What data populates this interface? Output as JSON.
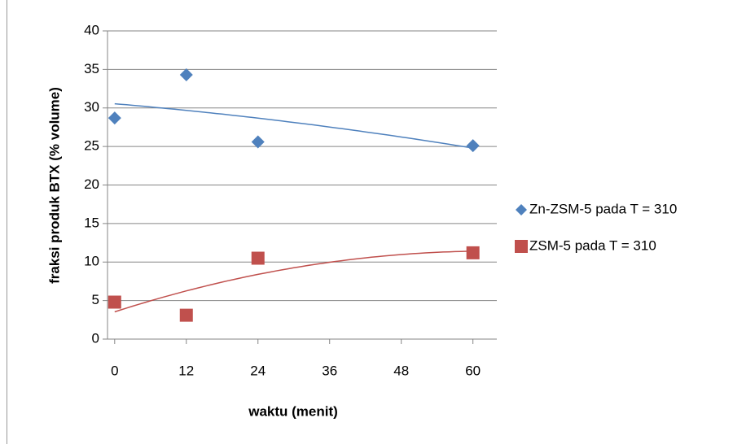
{
  "chart_data": {
    "type": "scatter",
    "x_label": "waktu (menit)",
    "y_label": "fraksi produk BTX (% volume)",
    "xlim": [
      -1.2,
      64
    ],
    "xticks": [
      0,
      12,
      24,
      36,
      48,
      60
    ],
    "ylim": [
      0,
      40
    ],
    "yticks": [
      0,
      5,
      10,
      15,
      20,
      25,
      30,
      35,
      40
    ],
    "grid": true,
    "legend": "right",
    "trendline": "polynomial",
    "trendline_order": 2,
    "series": [
      {
        "name": "Zn-ZSM-5 pada T = 310",
        "color": "#4f81bd",
        "marker": "diamond",
        "x": [
          0,
          12,
          24,
          60
        ],
        "values": [
          28.7,
          34.3,
          25.6,
          25.1
        ]
      },
      {
        "name": "ZSM-5 pada T = 310",
        "color": "#c0504d",
        "marker": "square",
        "x": [
          0,
          12,
          24,
          60
        ],
        "values": [
          4.8,
          3.1,
          10.5,
          11.2
        ]
      }
    ]
  }
}
